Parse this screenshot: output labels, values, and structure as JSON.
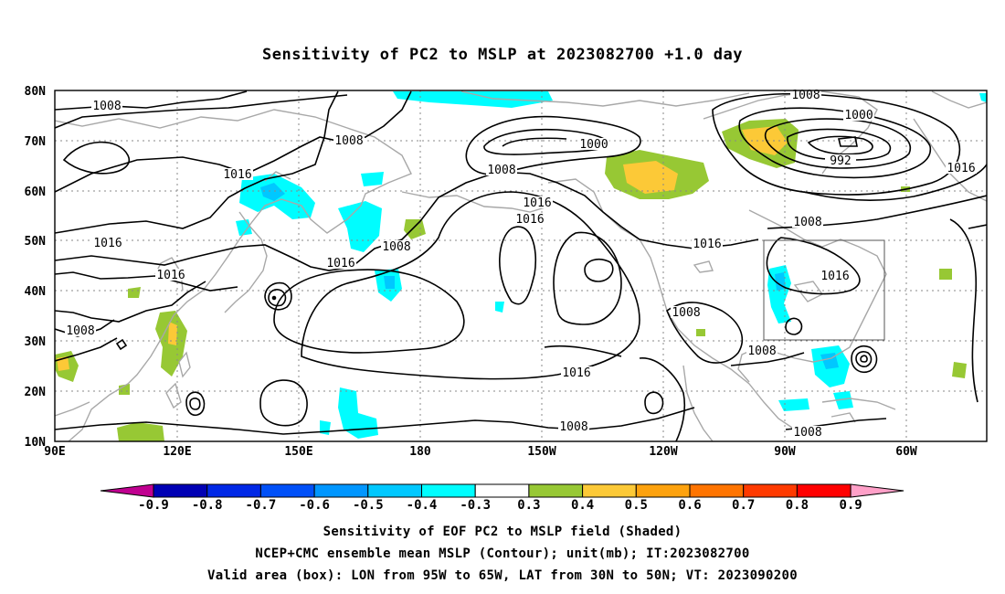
{
  "title": "Sensitivity of PC2 to MSLP at 2023082700 +1.0 day",
  "lon_labels": [
    "90E",
    "120E",
    "150E",
    "180",
    "150W",
    "120W",
    "90W",
    "60W"
  ],
  "lat_labels": [
    "80N",
    "70N",
    "60N",
    "50N",
    "40N",
    "30N",
    "20N",
    "10N"
  ],
  "contour_labels": [
    "1008",
    "1008",
    "1008",
    "1008",
    "1000",
    "1008",
    "1000",
    "992",
    "1016",
    "1016",
    "1016",
    "1016",
    "1016",
    "1016",
    "1016",
    "1016",
    "1008",
    "1008",
    "1008",
    "1016",
    "1008",
    "1008",
    "1016",
    "1008"
  ],
  "colorbar": {
    "labels": [
      "-0.9",
      "-0.8",
      "-0.7",
      "-0.6",
      "-0.5",
      "-0.4",
      "-0.3",
      "0.3",
      "0.4",
      "0.5",
      "0.6",
      "0.7",
      "0.8",
      "0.9"
    ],
    "colors": [
      "#0000b4",
      "#0028e6",
      "#0050f8",
      "#0096ff",
      "#00c8ff",
      "#00fdff",
      "#ffffff",
      "#97c834",
      "#fcc937",
      "#fda20e",
      "#ff7400",
      "#ff3a00",
      "#ff0000"
    ],
    "left_arrow_color": "#c00090",
    "right_arrow_color": "#ffa0c8"
  },
  "captions": [
    "Sensitivity of EOF PC2 to MSLP field (Shaded)",
    "NCEP+CMC ensemble mean MSLP (Contour); unit(mb); IT:2023082700",
    "Valid area (box): LON from 95W to 65W, LAT from 30N to 50N; VT: 2023090200"
  ],
  "valid_area": {
    "lon_min": -95,
    "lon_max": -65,
    "lat_min": 30,
    "lat_max": 50
  },
  "colors": {
    "contour": "#000000",
    "coast": "#a8a8a8",
    "grid": "#888888",
    "negative": "#00fdff",
    "negative_strong": "#00c8ff",
    "positive": "#97c834",
    "positive_strong": "#fcc937"
  }
}
